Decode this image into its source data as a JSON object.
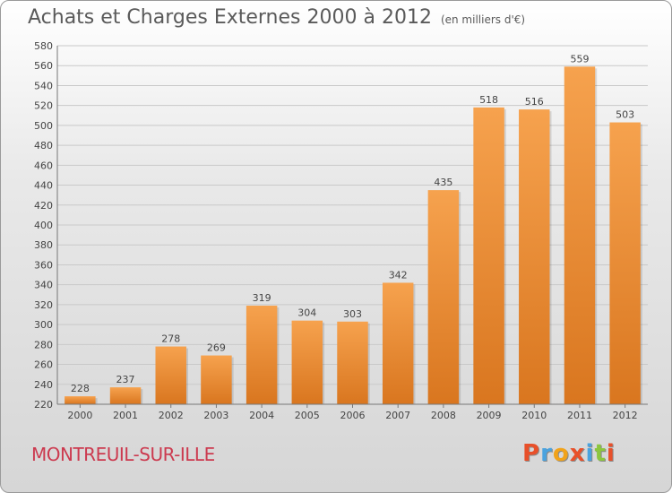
{
  "header": {
    "title": "Achats et Charges Externes 2000 à 2012",
    "subtitle": "(en milliers d'€)"
  },
  "footer": {
    "commune": "MONTREUIL-SUR-ILLE",
    "logo_text": "Proxiti"
  },
  "colors": {
    "bar_light": "#f6a24e",
    "bar_dark": "#d9761f",
    "logo_letters": [
      "#e8502a",
      "#4aa3df",
      "#f1a31a",
      "#e8502a",
      "#4aa3df",
      "#8cc63f",
      "#e8502a"
    ]
  },
  "chart_data": {
    "type": "bar",
    "title": "Achats et Charges Externes 2000 à 2012",
    "subtitle": "(en milliers d'€)",
    "categories": [
      "2000",
      "2001",
      "2002",
      "2003",
      "2004",
      "2005",
      "2006",
      "2007",
      "2008",
      "2009",
      "2010",
      "2011",
      "2012"
    ],
    "values": [
      228,
      237,
      278,
      269,
      319,
      304,
      303,
      342,
      435,
      518,
      516,
      559,
      503
    ],
    "ylim": [
      220,
      580
    ],
    "yticks": [
      220,
      240,
      260,
      280,
      300,
      320,
      340,
      360,
      380,
      400,
      420,
      440,
      460,
      480,
      500,
      520,
      540,
      560,
      580
    ],
    "grid": true,
    "data_labels": true
  }
}
